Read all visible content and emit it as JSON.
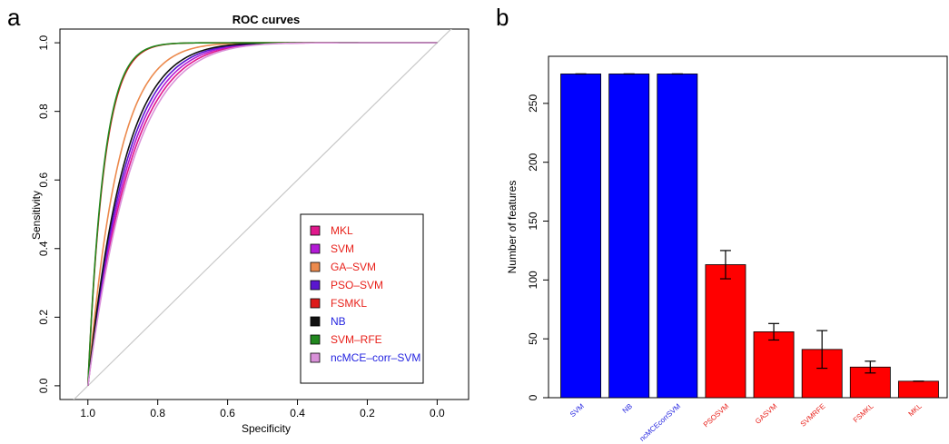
{
  "panel_a": {
    "letter": "a",
    "chart_data": {
      "type": "line",
      "title": "ROC curves",
      "xlabel": "Specificity",
      "ylabel": "Sensitivity",
      "xlim": [
        1.08,
        -0.09
      ],
      "ylim": [
        -0.04,
        1.04
      ],
      "x_ticks": [
        "1.0",
        "0.8",
        "0.6",
        "0.4",
        "0.2",
        "0.0"
      ],
      "y_ticks": [
        "0.0",
        "0.2",
        "0.4",
        "0.6",
        "0.8",
        "1.0"
      ],
      "diagonal": true,
      "legend_position": "bottom-right",
      "series": [
        {
          "name": "MKL",
          "color": "#e0188c",
          "label_color": "#e8211b",
          "auc": 0.89
        },
        {
          "name": "SVM",
          "color": "#b31ad6",
          "label_color": "#e8211b",
          "auc": 0.895
        },
        {
          "name": "GA–SVM",
          "color": "#ec8a4d",
          "label_color": "#e8211b",
          "auc": 0.92
        },
        {
          "name": "PSO–SVM",
          "color": "#5a16d0",
          "label_color": "#e8211b",
          "auc": 0.9
        },
        {
          "name": "FSMKL",
          "color": "#dd1a1a",
          "label_color": "#e8211b",
          "auc": 0.955
        },
        {
          "name": "NB",
          "color": "#111111",
          "label_color": "#2424e0",
          "auc": 0.905
        },
        {
          "name": "SVM–RFE",
          "color": "#22881f",
          "label_color": "#e8211b",
          "auc": 0.956
        },
        {
          "name": "ncMCE–corr–SVM",
          "color": "#d991d9",
          "label_color": "#2424e0",
          "auc": 0.885
        }
      ]
    }
  },
  "panel_b": {
    "letter": "b",
    "chart_data": {
      "type": "bar",
      "title": "",
      "ylabel": "Number of features",
      "ylim": [
        0,
        290
      ],
      "y_ticks": [
        0,
        50,
        100,
        150,
        200,
        250
      ],
      "categories": [
        "SVM",
        "NB",
        "ncMCEcorrSVM",
        "PSOSVM",
        "GASVM",
        "SVMRFE",
        "FSMKL",
        "MKL"
      ],
      "values": [
        275,
        275,
        275,
        113,
        56,
        41,
        26,
        14
      ],
      "error": [
        0,
        0,
        0,
        12,
        7,
        16,
        5,
        0
      ],
      "bar_colors": [
        "#0000ff",
        "#0000ff",
        "#0000ff",
        "#ff0000",
        "#ff0000",
        "#ff0000",
        "#ff0000",
        "#ff0000"
      ],
      "label_colors": [
        "#2424e0",
        "#2424e0",
        "#2424e0",
        "#e8211b",
        "#e8211b",
        "#e8211b",
        "#e8211b",
        "#e8211b"
      ]
    }
  }
}
